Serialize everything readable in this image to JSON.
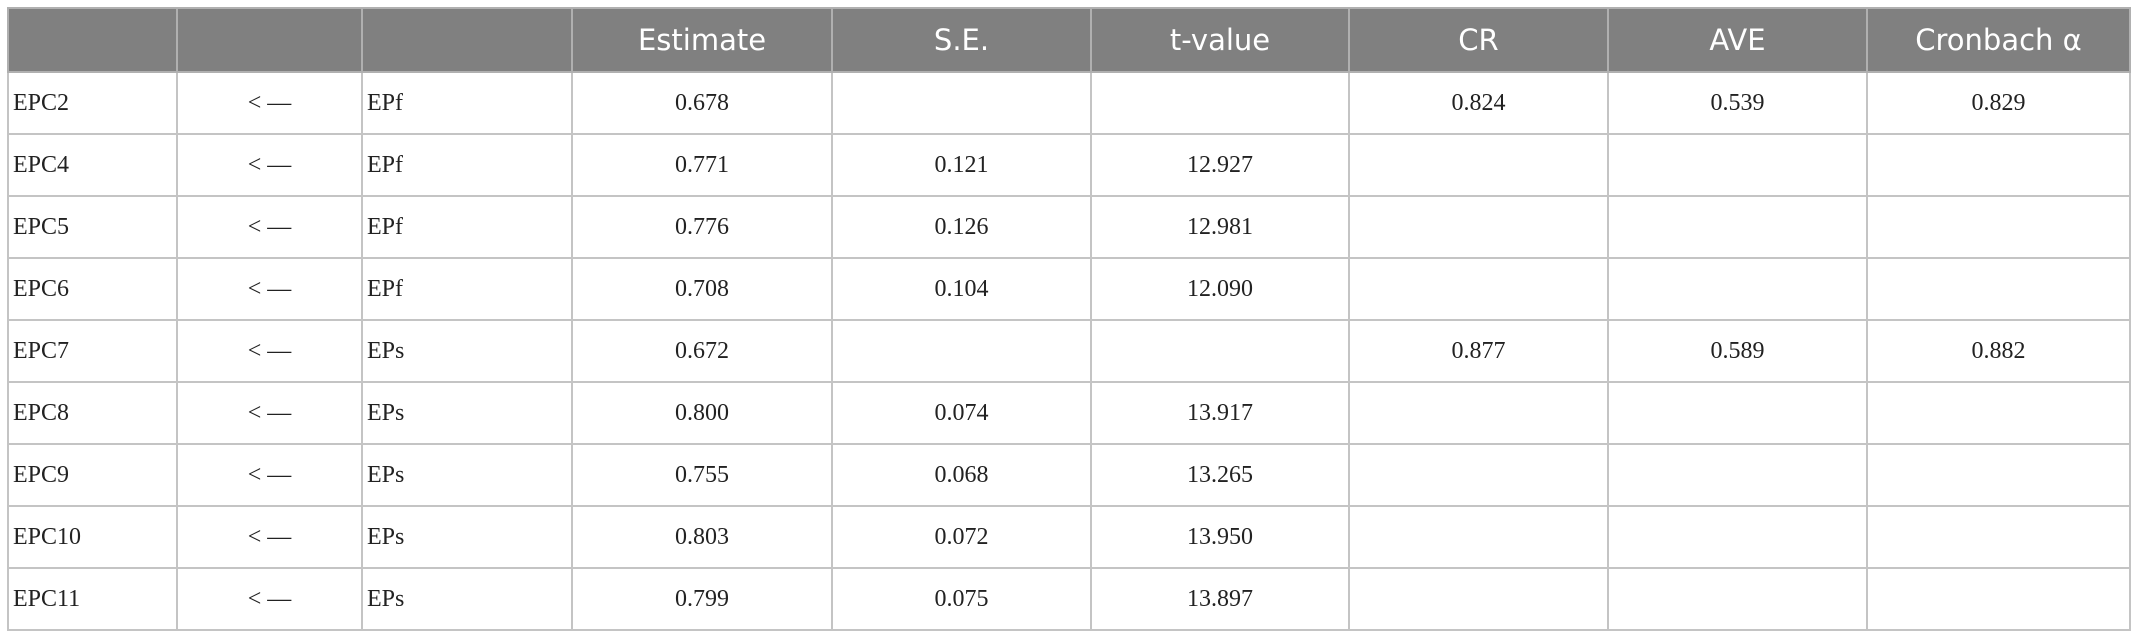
{
  "table": {
    "header": {
      "estimate": "Estimate",
      "se": "S.E.",
      "t": "t-value",
      "cr": "CR",
      "ave": "AVE",
      "alpha": "Cronbach α"
    },
    "rows": [
      {
        "item": "EPC2",
        "arrow": "< —",
        "factor": "EPf",
        "estimate": "0.678",
        "cr": "0.824",
        "ave": "0.539",
        "alpha": "0.829"
      },
      {
        "item": "EPC4",
        "arrow": "< —",
        "factor": "EPf",
        "estimate": "0.771",
        "se": "0.121",
        "t": "12.927"
      },
      {
        "item": "EPC5",
        "arrow": "< —",
        "factor": "EPf",
        "estimate": "0.776",
        "se": "0.126",
        "t": "12.981"
      },
      {
        "item": "EPC6",
        "arrow": "< —",
        "factor": "EPf",
        "estimate": "0.708",
        "se": "0.104",
        "t": "12.090"
      },
      {
        "item": "EPC7",
        "arrow": "< —",
        "factor": "EPs",
        "estimate": "0.672",
        "cr": "0.877",
        "ave": "0.589",
        "alpha": "0.882"
      },
      {
        "item": "EPC8",
        "arrow": "< —",
        "factor": "EPs",
        "estimate": "0.800",
        "se": "0.074",
        "t": "13.917"
      },
      {
        "item": "EPC9",
        "arrow": "< —",
        "factor": "EPs",
        "estimate": "0.755",
        "se": "0.068",
        "t": "13.265"
      },
      {
        "item": "EPC10",
        "arrow": "< —",
        "factor": "EPs",
        "estimate": "0.803",
        "se": "0.072",
        "t": "13.950"
      },
      {
        "item": "EPC11",
        "arrow": "< —",
        "factor": "EPs",
        "estimate": "0.799",
        "se": "0.075",
        "t": "13.897"
      }
    ]
  }
}
